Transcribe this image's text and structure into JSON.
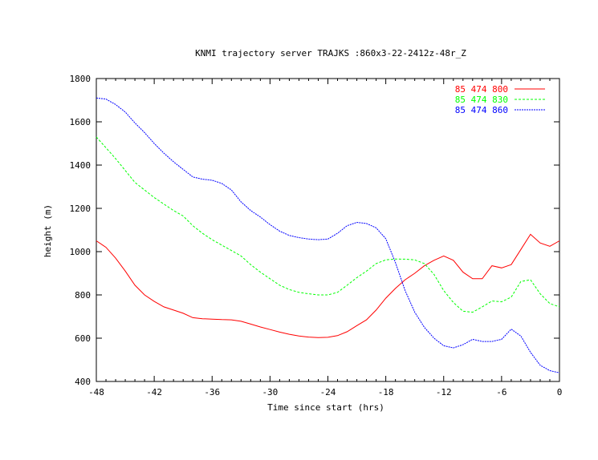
{
  "chart_data": {
    "type": "line",
    "title": "KNMI trajectory server TRAJKS :860x3-22-2412z-48r_Z",
    "xlabel": "Time since start (hrs)",
    "ylabel": "height (m)",
    "xlim": [
      -48,
      0
    ],
    "ylim": [
      400,
      1800
    ],
    "xticks": [
      -48,
      -42,
      -36,
      -30,
      -24,
      -18,
      -12,
      -6,
      0
    ],
    "yticks": [
      400,
      600,
      800,
      1000,
      1200,
      1400,
      1600,
      1800
    ],
    "grid": false,
    "legend_position": "top-right",
    "series": [
      {
        "name": "85 474 800",
        "color": "#ff0000",
        "dash": "solid",
        "x": [
          -48,
          -47,
          -46,
          -45,
          -44,
          -43,
          -42,
          -41,
          -40,
          -39,
          -38,
          -37,
          -36,
          -35,
          -34,
          -33,
          -32,
          -31,
          -30,
          -29,
          -28,
          -27,
          -26,
          -25,
          -24,
          -23,
          -22,
          -21,
          -20,
          -19,
          -18,
          -17,
          -16,
          -15,
          -14,
          -13,
          -12,
          -11,
          -10,
          -9,
          -8,
          -7,
          -6,
          -5,
          -4,
          -3,
          -2,
          -1,
          0
        ],
        "y": [
          1050,
          1020,
          970,
          910,
          845,
          800,
          770,
          745,
          730,
          715,
          695,
          690,
          688,
          686,
          685,
          678,
          665,
          652,
          640,
          628,
          618,
          610,
          605,
          603,
          604,
          612,
          630,
          658,
          685,
          730,
          785,
          830,
          870,
          900,
          935,
          960,
          980,
          960,
          905,
          875,
          875,
          935,
          925,
          940,
          1010,
          1080,
          1040,
          1025,
          1050
        ]
      },
      {
        "name": "85 474 830",
        "color": "#00ff00",
        "dash": "dashed",
        "x": [
          -48,
          -47,
          -46,
          -45,
          -44,
          -43,
          -42,
          -41,
          -40,
          -39,
          -38,
          -37,
          -36,
          -35,
          -34,
          -33,
          -32,
          -31,
          -30,
          -29,
          -28,
          -27,
          -26,
          -25,
          -24,
          -23,
          -22,
          -21,
          -20,
          -19,
          -18,
          -17,
          -16,
          -15,
          -14,
          -13,
          -12,
          -11,
          -10,
          -9,
          -8,
          -7,
          -6,
          -5,
          -4,
          -3,
          -2,
          -1,
          0
        ],
        "y": [
          1530,
          1480,
          1430,
          1375,
          1320,
          1285,
          1250,
          1220,
          1190,
          1165,
          1120,
          1085,
          1055,
          1030,
          1005,
          980,
          940,
          905,
          875,
          845,
          825,
          812,
          805,
          800,
          800,
          812,
          845,
          880,
          910,
          945,
          962,
          966,
          965,
          962,
          945,
          895,
          820,
          765,
          725,
          720,
          745,
          772,
          768,
          790,
          862,
          870,
          805,
          760,
          745
        ]
      },
      {
        "name": "85 474 860",
        "color": "#0000ff",
        "dash": "dotted",
        "x": [
          -48,
          -47,
          -46,
          -45,
          -44,
          -43,
          -42,
          -41,
          -40,
          -39,
          -38,
          -37,
          -36,
          -35,
          -34,
          -33,
          -32,
          -31,
          -30,
          -29,
          -28,
          -27,
          -26,
          -25,
          -24,
          -23,
          -22,
          -21,
          -20,
          -19,
          -18,
          -17,
          -16,
          -15,
          -14,
          -13,
          -12,
          -11,
          -10,
          -9,
          -8,
          -7,
          -6,
          -5,
          -4,
          -3,
          -2,
          -1,
          0
        ],
        "y": [
          1710,
          1705,
          1680,
          1645,
          1595,
          1550,
          1500,
          1455,
          1415,
          1380,
          1345,
          1335,
          1330,
          1315,
          1285,
          1230,
          1190,
          1160,
          1125,
          1095,
          1075,
          1065,
          1058,
          1055,
          1058,
          1085,
          1120,
          1135,
          1130,
          1110,
          1060,
          950,
          820,
          720,
          650,
          600,
          565,
          555,
          570,
          595,
          585,
          585,
          595,
          642,
          610,
          535,
          475,
          450,
          440
        ]
      }
    ]
  }
}
